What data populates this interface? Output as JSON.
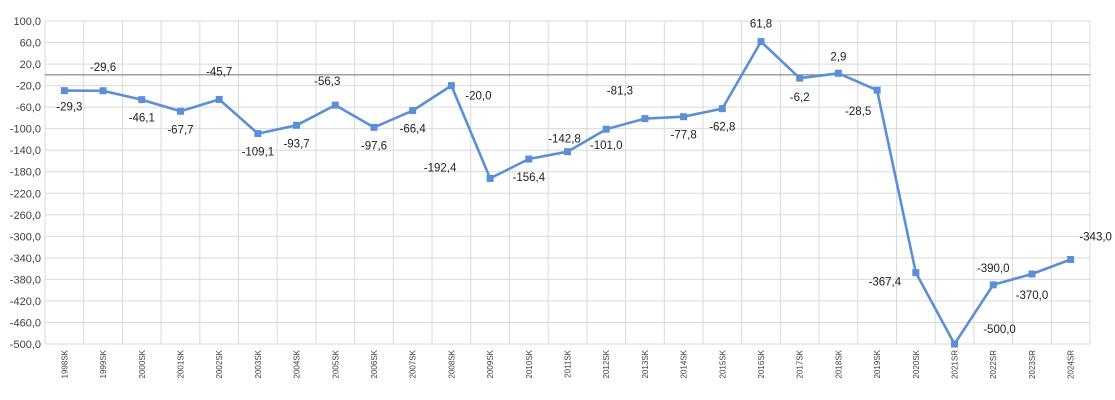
{
  "chart_data": {
    "type": "line",
    "categories": [
      "1998SK",
      "1999SK",
      "2000SK",
      "2001SK",
      "2002SK",
      "2003SK",
      "2004SK",
      "2005SK",
      "2006SK",
      "2007SK",
      "2008SK",
      "2009SK",
      "2010SK",
      "2011SK",
      "2012SK",
      "2013SK",
      "2014SK",
      "2015SK",
      "2016SK",
      "2017SK",
      "2018SK",
      "2019SK",
      "2020SK",
      "2021SR",
      "2022SR",
      "2023SR",
      "2024SR"
    ],
    "series": [
      {
        "values": [
          -29.3,
          -29.6,
          -46.1,
          -67.7,
          -45.7,
          -109.1,
          -93.7,
          -56.3,
          -97.6,
          -66.4,
          -20.0,
          -192.4,
          -156.4,
          -142.8,
          -101.0,
          -81.3,
          -77.8,
          -62.8,
          61.8,
          -6.2,
          2.9,
          -28.5,
          -367.4,
          -500.0,
          -390.0,
          -370.0,
          -343.0
        ],
        "labels": [
          "-29,3",
          "-29,6",
          "-46,1",
          "-67,7",
          "-45,7",
          "-109,1",
          "-93,7",
          "-56,3",
          "-97,6",
          "-66,4",
          "-20,0",
          "-192,4",
          "-156,4",
          "-142,8",
          "-101,0",
          "-81,3",
          "-77,8",
          "-62,8",
          "61,8",
          "-6,2",
          "2,9",
          "-28,5",
          "-367,4",
          "-500,0",
          "-390,0",
          "-370,0",
          "-343,0"
        ],
        "color": "#5b8fd6"
      }
    ],
    "yticks": [
      "100,0",
      "60,0",
      "20,0",
      "-20,0",
      "-60,0",
      "-100,0",
      "-140,0",
      "-180,0",
      "-220,0",
      "-260,0",
      "-300,0",
      "-340,0",
      "-380,0",
      "-420,0",
      "-460,0",
      "-500,0"
    ],
    "ylim": [
      -500,
      100
    ],
    "grid": true,
    "legend": "none"
  }
}
